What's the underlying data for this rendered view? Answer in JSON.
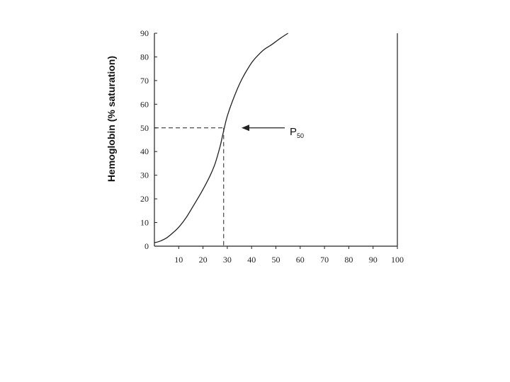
{
  "chart_data": {
    "type": "line",
    "title": "",
    "xlabel": "",
    "ylabel": "Hemoglobin (% saturation)",
    "xlim": [
      0,
      100
    ],
    "ylim": [
      0,
      90
    ],
    "x_ticks": [
      "10",
      "20",
      "30",
      "40",
      "50",
      "60",
      "70",
      "80",
      "90",
      "100"
    ],
    "y_ticks": [
      "0",
      "10",
      "20",
      "30",
      "40",
      "50",
      "60",
      "70",
      "80",
      "90"
    ],
    "grid": false,
    "series": [
      {
        "x": [
          0,
          2,
          5,
          8,
          10,
          13,
          16,
          20,
          23,
          25,
          27,
          28,
          29,
          30,
          32,
          35,
          37,
          40,
          42,
          45,
          48,
          50,
          52,
          55
        ],
        "y": [
          1.5,
          2,
          3.5,
          6,
          8,
          12,
          17,
          24,
          30,
          35,
          42,
          46.5,
          51,
          55,
          61,
          68.5,
          72.5,
          77.5,
          80,
          83,
          85,
          86.5,
          88,
          90
        ]
      }
    ],
    "annotations": [
      {
        "label_main": "P",
        "label_sub": "50",
        "x": 28.5,
        "y": 50
      }
    ]
  }
}
